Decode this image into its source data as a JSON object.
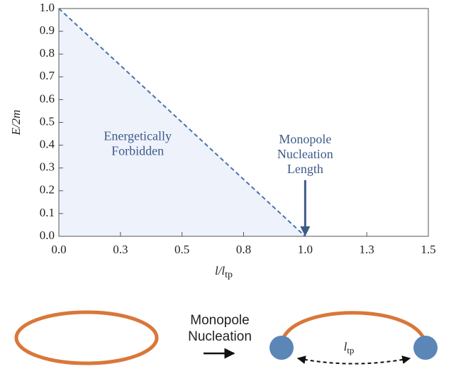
{
  "chart_data": {
    "type": "line",
    "x": [
      0,
      1
    ],
    "series": [
      {
        "color": "#4a72a8",
        "values": [
          1,
          0
        ]
      }
    ],
    "dashed": true,
    "fill_color": "#eef2fb",
    "xlim": [
      0,
      1.5
    ],
    "xticks": [
      {
        "value": 0,
        "label": "0.0"
      },
      {
        "value": 0.25,
        "label": "0.3"
      },
      0.5,
      {
        "value": 0.75,
        "label": "0.8"
      },
      {
        "value": 1,
        "label": "1.0"
      },
      {
        "value": 1.25,
        "label": "1.3"
      },
      1.5
    ],
    "ylim": [
      0,
      1
    ],
    "yticks": [
      {
        "value": 0,
        "label": "0.0"
      },
      0.1,
      0.2,
      0.3,
      0.4,
      0.5,
      0.6,
      0.7,
      0.8,
      0.9,
      {
        "value": 1,
        "label": "1.0"
      }
    ],
    "ylabel": "E/2m",
    "xlabel": {
      "text": "l/l",
      "subscript": "tp"
    },
    "annotations": [
      {
        "lines": [
          "Energetically",
          "Forbidden"
        ],
        "x": 0.32,
        "y": 0.37
      },
      {
        "lines": [
          "Monopole",
          "Nucleation",
          "Length"
        ],
        "x": 1,
        "y": 0.29,
        "arrow": true
      }
    ]
  },
  "diagram": {
    "label_lines": [
      "Monopole",
      "Nucleation"
    ],
    "length_label": {
      "text": "l",
      "subscript": "tp"
    }
  }
}
